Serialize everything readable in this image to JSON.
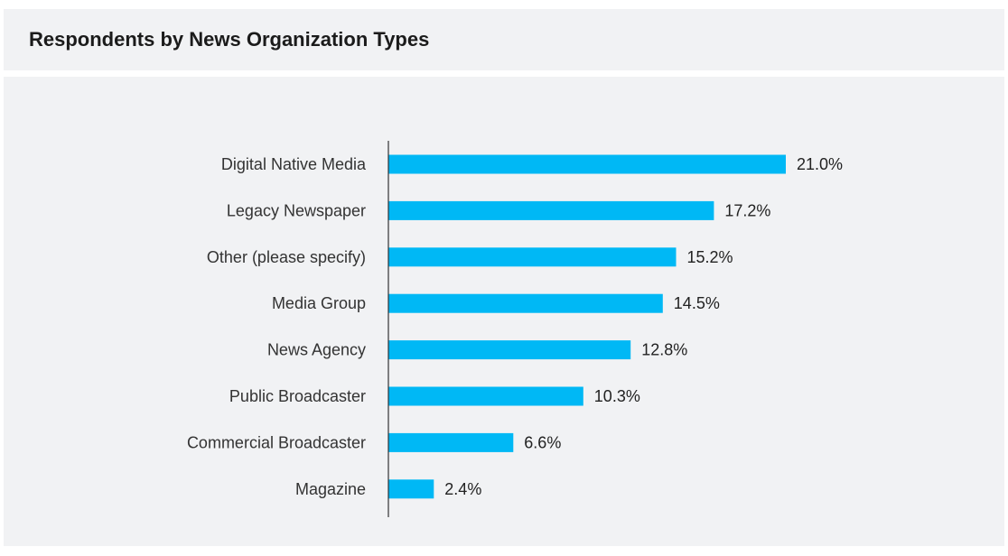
{
  "title": "Respondents by News Organization Types",
  "colors": {
    "bar": "#00b8f5",
    "axis": "#333333",
    "background": "#f1f2f4"
  },
  "chart_data": {
    "type": "bar",
    "orientation": "horizontal",
    "title": "Respondents by News Organization Types",
    "categories": [
      "Digital Native Media",
      "Legacy Newspaper",
      "Other (please specify)",
      "Media Group",
      "News Agency",
      "Public Broadcaster",
      "Commercial Broadcaster",
      "Magazine"
    ],
    "values": [
      21.0,
      17.2,
      15.2,
      14.5,
      12.8,
      10.3,
      6.6,
      2.4
    ],
    "value_labels": [
      "21.0%",
      "17.2%",
      "15.2%",
      "14.5%",
      "12.8%",
      "10.3%",
      "6.6%",
      "2.4%"
    ],
    "unit": "%",
    "xlim": [
      0,
      21
    ],
    "grid": false,
    "legend": "none"
  }
}
